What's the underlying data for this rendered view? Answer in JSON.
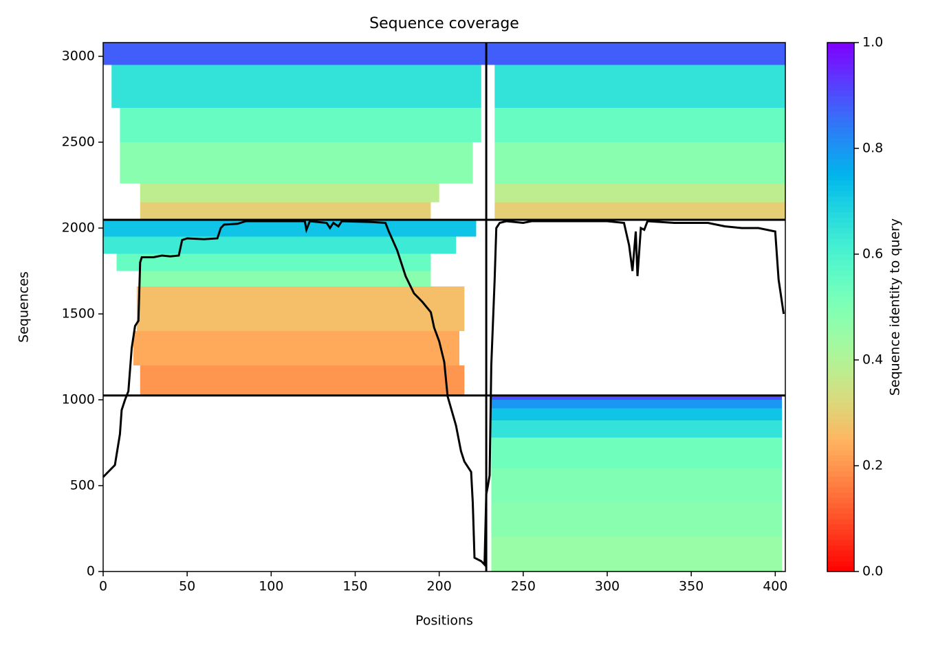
{
  "chart_data": {
    "type": "coverage",
    "title": "Sequence coverage",
    "xlabel": "Positions",
    "ylabel": "Sequences",
    "colorbar_label": "Sequence identity to query",
    "colormap": "rainbow_r",
    "xlim": [
      0,
      406
    ],
    "ylim": [
      0,
      3080
    ],
    "xticks": [
      0,
      50,
      100,
      150,
      200,
      250,
      300,
      350,
      400
    ],
    "yticks": [
      0,
      500,
      1000,
      1500,
      2000,
      2500,
      3000
    ],
    "clim": [
      0,
      1
    ],
    "cticks": [
      {
        "value": 0,
        "label": "0.0"
      },
      0.2,
      0.4,
      0.6,
      0.8,
      {
        "value": 1,
        "label": "1.0"
      }
    ],
    "boundaries_x": [
      228
    ],
    "boundaries_y": [
      1025,
      2048
    ],
    "cells": [
      [
        231,
        404,
        0,
        200,
        0.45
      ],
      [
        231,
        404,
        200,
        400,
        0.48
      ],
      [
        231,
        404,
        400,
        600,
        0.5
      ],
      [
        231,
        404,
        600,
        780,
        0.53
      ],
      [
        231,
        404,
        780,
        880,
        0.65
      ],
      [
        231,
        404,
        880,
        950,
        0.72
      ],
      [
        231,
        404,
        950,
        1000,
        0.8
      ],
      [
        231,
        404,
        1000,
        1025,
        0.9
      ],
      [
        22,
        215,
        1025,
        1200,
        0.2
      ],
      [
        18,
        212,
        1200,
        1400,
        0.23
      ],
      [
        20,
        215,
        1400,
        1660,
        0.27
      ],
      [
        22,
        195,
        1660,
        1750,
        0.48
      ],
      [
        8,
        195,
        1750,
        1850,
        0.55
      ],
      [
        0,
        210,
        1850,
        1950,
        0.63
      ],
      [
        0,
        222,
        1950,
        2048,
        0.72
      ],
      [
        22,
        195,
        2048,
        2150,
        0.3
      ],
      [
        233,
        406,
        2048,
        2150,
        0.3
      ],
      [
        22,
        200,
        2150,
        2260,
        0.38
      ],
      [
        233,
        406,
        2150,
        2260,
        0.38
      ],
      [
        10,
        220,
        2260,
        2500,
        0.48
      ],
      [
        233,
        406,
        2260,
        2500,
        0.48
      ],
      [
        10,
        225,
        2500,
        2700,
        0.55
      ],
      [
        233,
        406,
        2500,
        2700,
        0.55
      ],
      [
        5,
        225,
        2700,
        2950,
        0.65
      ],
      [
        233,
        406,
        2700,
        2950,
        0.65
      ],
      [
        0,
        228,
        2950,
        3080,
        0.88
      ],
      [
        228,
        406,
        2950,
        3080,
        0.88
      ]
    ],
    "coverage": {
      "color": "#000000",
      "x": [
        0,
        3,
        7,
        10,
        11,
        13,
        15,
        17,
        19,
        21,
        22,
        23,
        30,
        35,
        40,
        45,
        47,
        50,
        60,
        68,
        70,
        72,
        80,
        85,
        100,
        120,
        121,
        123,
        133,
        135,
        137,
        140,
        142,
        160,
        168,
        170,
        175,
        180,
        183,
        185,
        190,
        195,
        197,
        200,
        203,
        205,
        210,
        213,
        215,
        219,
        220,
        221,
        225,
        227,
        228,
        229,
        230,
        231,
        233,
        234,
        236,
        240,
        250,
        255,
        300,
        310,
        313,
        315,
        317,
        318,
        320,
        322,
        324,
        340,
        360,
        370,
        380,
        390,
        400,
        402,
        405
      ],
      "values": [
        550,
        580,
        620,
        800,
        940,
        1000,
        1050,
        1300,
        1430,
        1460,
        1800,
        1830,
        1830,
        1840,
        1835,
        1840,
        1930,
        1940,
        1935,
        1940,
        2000,
        2020,
        2025,
        2040,
        2040,
        2040,
        1990,
        2040,
        2030,
        2000,
        2030,
        2010,
        2040,
        2035,
        2030,
        1980,
        1870,
        1720,
        1660,
        1620,
        1570,
        1510,
        1420,
        1340,
        1220,
        1020,
        850,
        700,
        640,
        580,
        400,
        80,
        60,
        40,
        450,
        500,
        560,
        1200,
        1700,
        2000,
        2030,
        2040,
        2030,
        2040,
        2040,
        2030,
        1900,
        1750,
        1980,
        1720,
        2000,
        1990,
        2040,
        2030,
        2030,
        2010,
        2000,
        2000,
        1980,
        1700,
        1500
      ]
    }
  }
}
